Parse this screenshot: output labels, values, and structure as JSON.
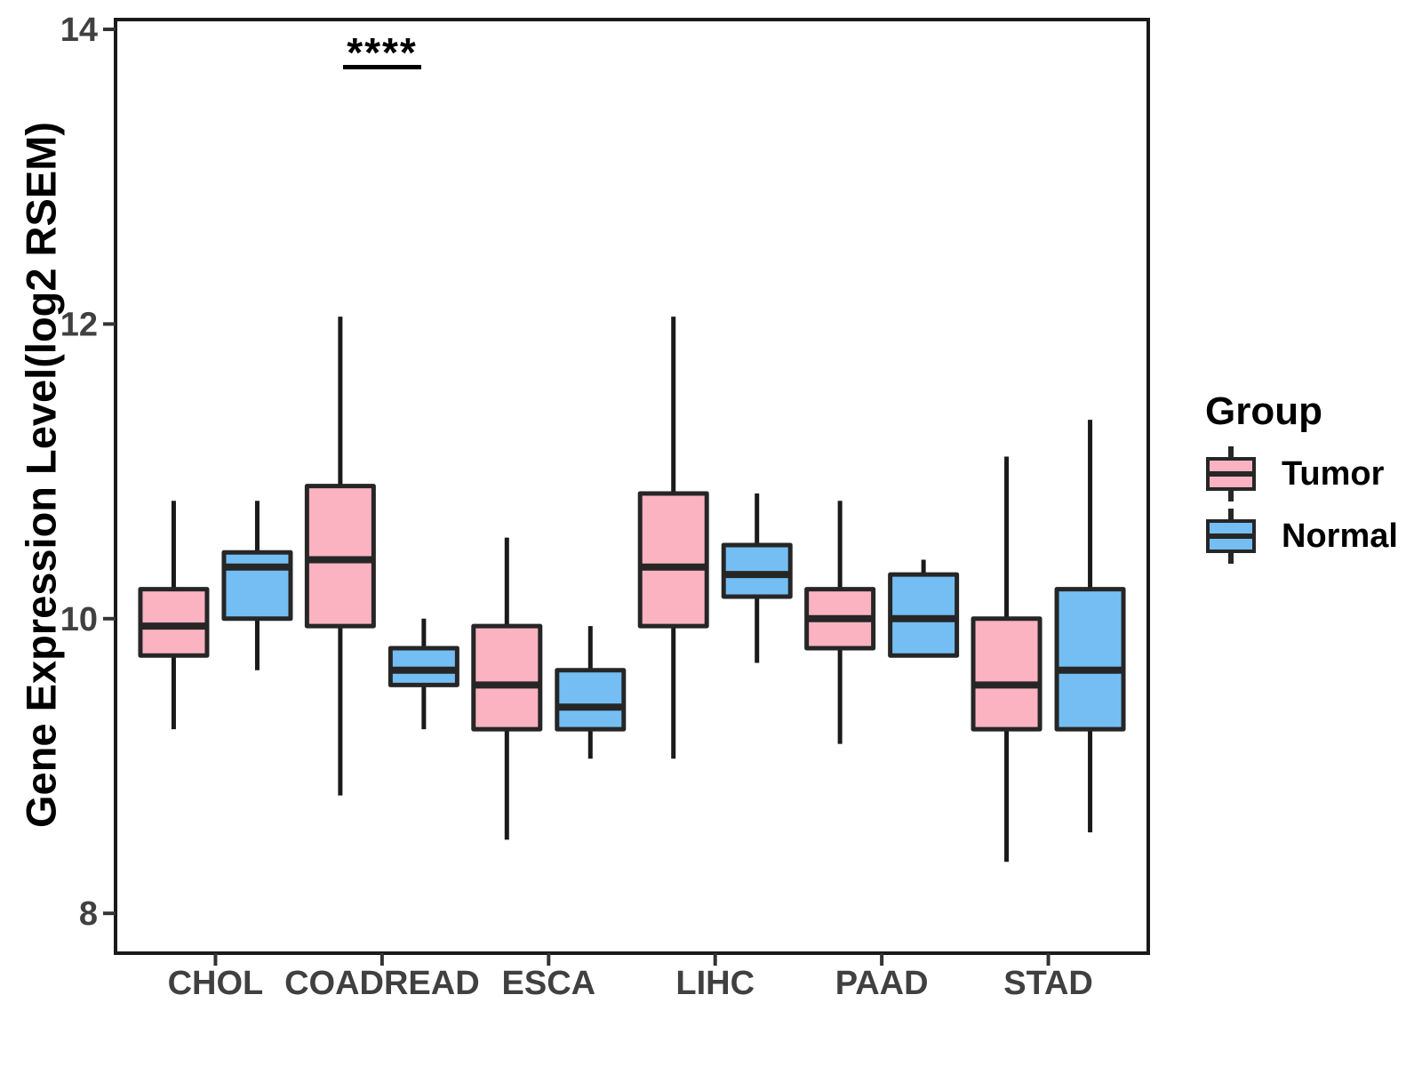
{
  "chart_data": {
    "type": "boxplot",
    "title": "",
    "xlabel": "",
    "ylabel": "Gene Expression Level(log2 RSEM)",
    "ylim": [
      7.7,
      14.1
    ],
    "yticks": [
      8,
      10,
      12,
      14
    ],
    "grid": false,
    "categories": [
      "CHOL",
      "COADREAD",
      "ESCA",
      "LIHC",
      "PAAD",
      "STAD"
    ],
    "series": [
      {
        "name": "Tumor",
        "color": "#FBB3C1",
        "boxes": [
          {
            "min": 9.25,
            "q1": 9.75,
            "median": 9.95,
            "q3": 10.2,
            "max": 10.8
          },
          {
            "min": 8.8,
            "q1": 9.95,
            "median": 10.4,
            "q3": 10.9,
            "max": 12.05
          },
          {
            "min": 8.5,
            "q1": 9.25,
            "median": 9.55,
            "q3": 9.95,
            "max": 10.55
          },
          {
            "min": 9.05,
            "q1": 9.95,
            "median": 10.35,
            "q3": 10.85,
            "max": 12.05
          },
          {
            "min": 9.15,
            "q1": 9.8,
            "median": 10.0,
            "q3": 10.2,
            "max": 10.8
          },
          {
            "min": 8.35,
            "q1": 9.25,
            "median": 9.55,
            "q3": 10.0,
            "max": 11.1
          }
        ]
      },
      {
        "name": "Normal",
        "color": "#74BEF4",
        "boxes": [
          {
            "min": 9.65,
            "q1": 10.0,
            "median": 10.35,
            "q3": 10.45,
            "max": 10.8
          },
          {
            "min": 9.25,
            "q1": 9.55,
            "median": 9.65,
            "q3": 9.8,
            "max": 10.0
          },
          {
            "min": 9.05,
            "q1": 9.25,
            "median": 9.4,
            "q3": 9.65,
            "max": 9.95
          },
          {
            "min": 9.7,
            "q1": 10.15,
            "median": 10.3,
            "q3": 10.5,
            "max": 10.85
          },
          {
            "min": 9.75,
            "q1": 9.75,
            "median": 10.0,
            "q3": 10.3,
            "max": 10.4
          },
          {
            "min": 8.55,
            "q1": 9.25,
            "median": 9.65,
            "q3": 10.2,
            "max": 11.35
          }
        ]
      }
    ],
    "annotation": {
      "text": "****",
      "category": "COADREAD"
    },
    "legend": {
      "title": "Group",
      "position": "right"
    }
  }
}
